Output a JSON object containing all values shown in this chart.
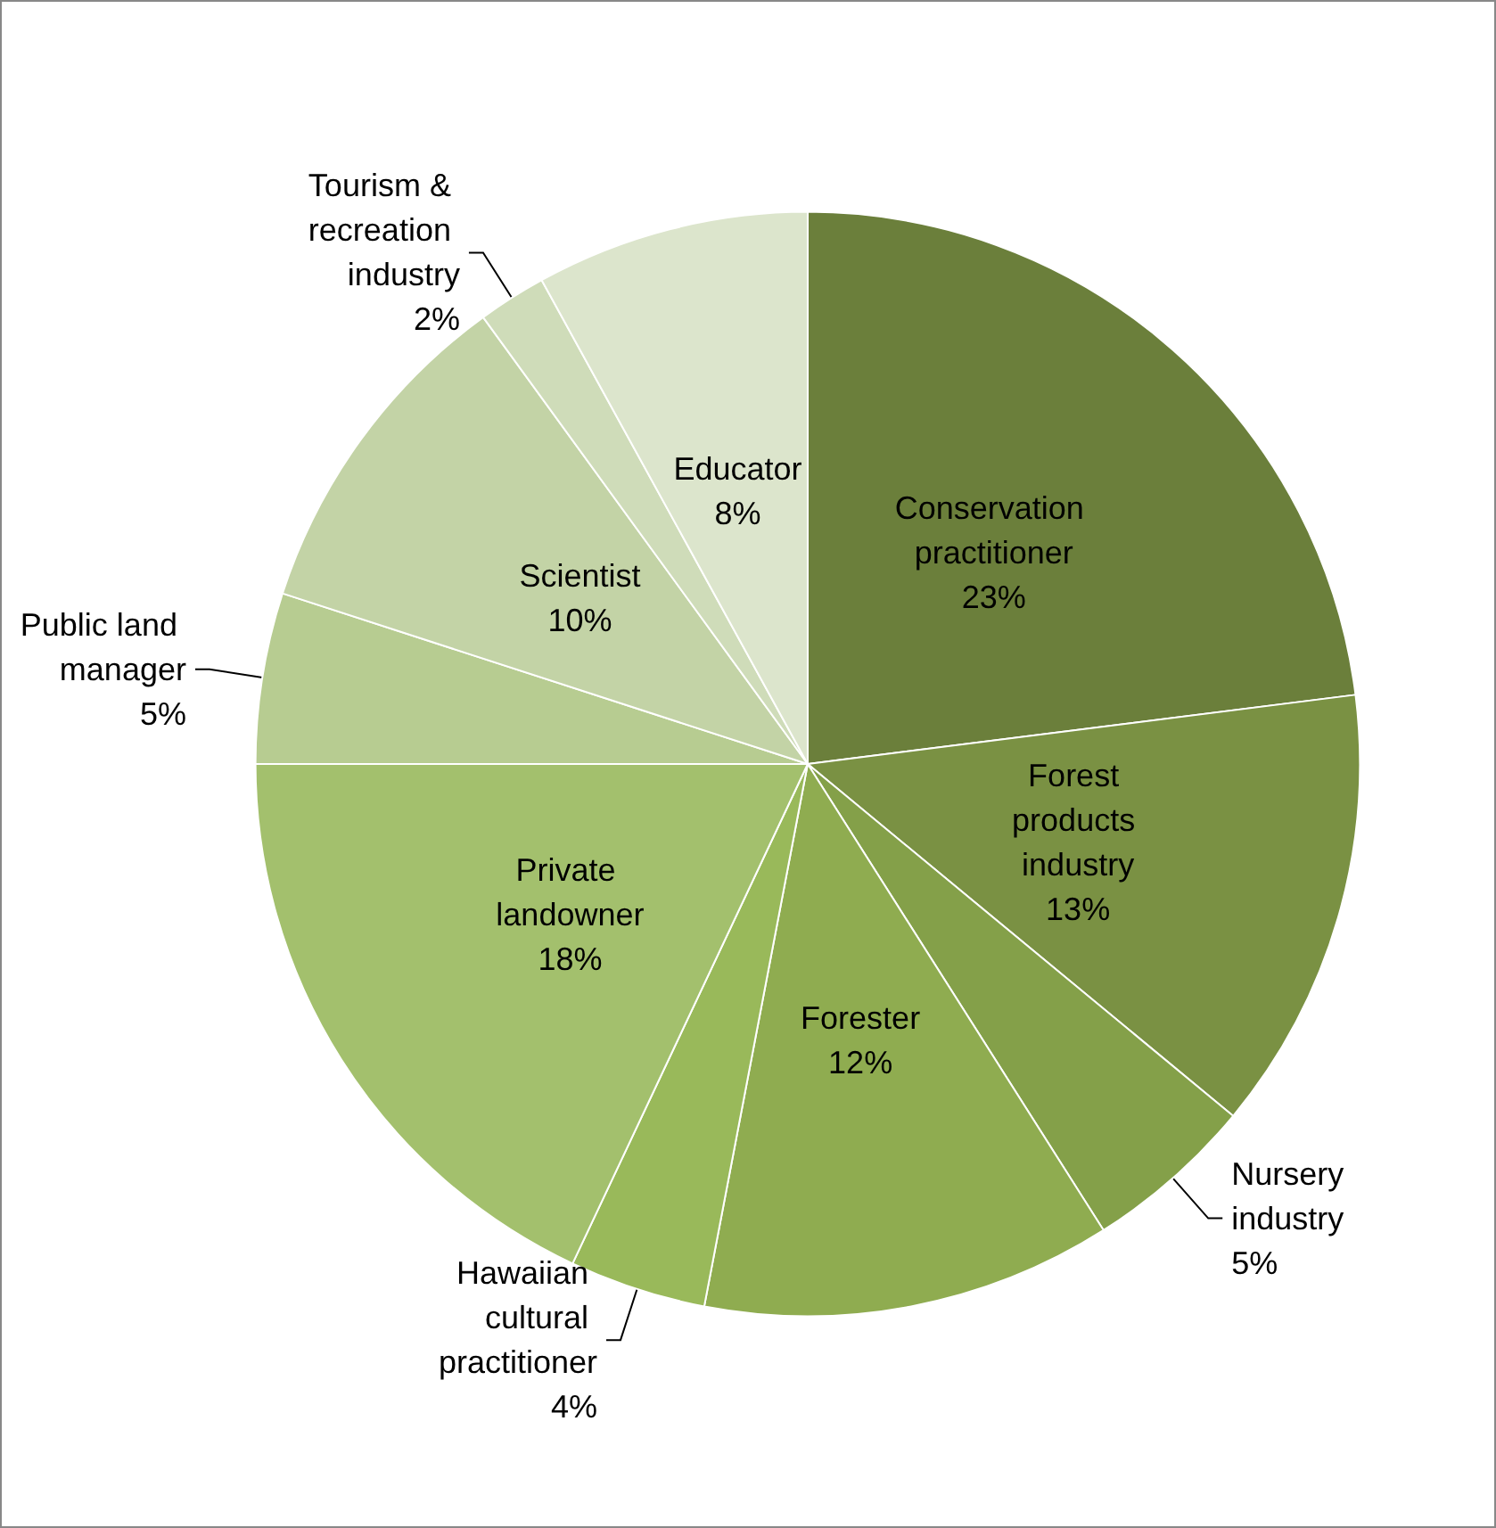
{
  "chart_data": {
    "type": "pie",
    "categories": [
      "Conservation practitioner",
      "Forest products industry",
      "Nursery industry",
      "Forester",
      "Hawaiian cultural practitioner",
      "Private landowner",
      "Public land manager",
      "Scientist",
      "Tourism & recreation industry",
      "Educator"
    ],
    "values": [
      23,
      13,
      5,
      12,
      4,
      18,
      5,
      10,
      2,
      8
    ],
    "value_labels": [
      "23%",
      "13%",
      "5%",
      "12%",
      "4%",
      "18%",
      "5%",
      "10%",
      "2%",
      "8%"
    ],
    "colors": [
      "#6b7f3b",
      "#7a9143",
      "#84a049",
      "#8fac50",
      "#99b95a",
      "#a3c06d",
      "#b7cc91",
      "#c3d3a6",
      "#cfdcb9",
      "#dce5cc"
    ],
    "legend": false
  }
}
